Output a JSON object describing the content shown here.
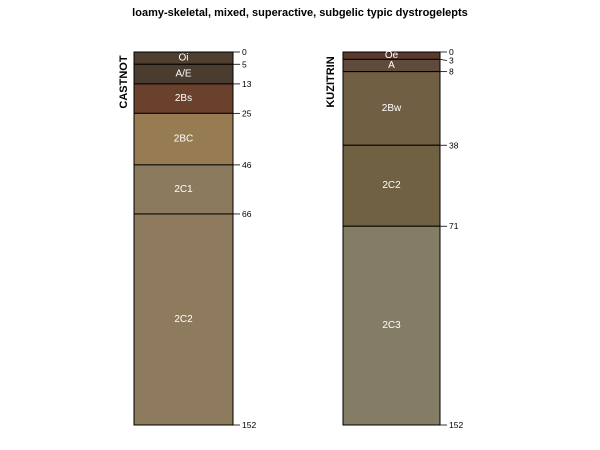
{
  "figure": {
    "title": "loamy-skeletal, mixed, superactive, subgelic typic dystrogelepts",
    "max_depth": 152
  },
  "profiles": [
    {
      "name": "CASTNOT",
      "horizons": [
        {
          "label": "Oi",
          "top": 0,
          "bottom": 5,
          "color": "#4e3f31"
        },
        {
          "label": "A/E",
          "top": 5,
          "bottom": 13,
          "color": "#4a3c2f"
        },
        {
          "label": "2Bs",
          "top": 13,
          "bottom": 25,
          "color": "#6a412c"
        },
        {
          "label": "2BC",
          "top": 25,
          "bottom": 46,
          "color": "#977b52"
        },
        {
          "label": "2C1",
          "top": 46,
          "bottom": 66,
          "color": "#8c7a5f"
        },
        {
          "label": "2C2",
          "top": 66,
          "bottom": 152,
          "color": "#8e7a5c"
        }
      ],
      "depth_labels": [
        "0",
        "5",
        "13",
        "25",
        "46",
        "66",
        "152"
      ]
    },
    {
      "name": "KUZITRIN",
      "horizons": [
        {
          "label": "Oe",
          "top": 0,
          "bottom": 3,
          "color": "#5a3a2e"
        },
        {
          "label": "A",
          "top": 3,
          "bottom": 8,
          "color": "#5f4a3b"
        },
        {
          "label": "2Bw",
          "top": 8,
          "bottom": 38,
          "color": "#715f44"
        },
        {
          "label": "2C2",
          "top": 38,
          "bottom": 71,
          "color": "#6f6141"
        },
        {
          "label": "2C3",
          "top": 71,
          "bottom": 152,
          "color": "#847c65"
        }
      ],
      "depth_labels": [
        "0",
        "3",
        "8",
        "38",
        "71",
        "152"
      ]
    }
  ]
}
